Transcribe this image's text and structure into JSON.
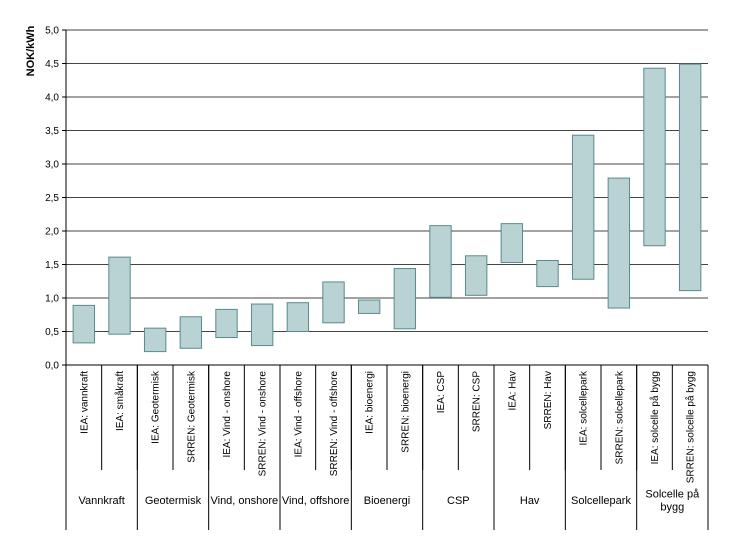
{
  "chart_data": {
    "type": "bar",
    "title": "",
    "xlabel": "",
    "ylabel": "NOK/kWh",
    "ylim": [
      0,
      5
    ],
    "ytick_step": 0.5,
    "ytick_labels": [
      "0,0",
      "0,5",
      "1,0",
      "1,5",
      "2,0",
      "2,5",
      "3,0",
      "3,5",
      "4,0",
      "4,5",
      "5,0"
    ],
    "grid": true,
    "legend": "none",
    "bar_color": "#b9d3d4",
    "bar_edge_color": "#5a8a8c",
    "categories": [
      "IEA: vannkraft",
      "IEA: småkraft",
      "IEA: Geotermisk",
      "SRREN: Geotermisk",
      "IEA: Vind - onshore",
      "SRREN: Vind - onshore",
      "IEA: Vind - offshore",
      "SRREN: Vind - offshore",
      "IEA: bioenergi",
      "SRREN: bioenergi",
      "IEA: CSP",
      "SRREN: CSP",
      "IEA: Hav",
      "SRREN: Hav",
      "IEA: solcellepark",
      "SRREN: solcellepark",
      "IEA: solcelle på bygg",
      "SRREN: solcelle på bygg"
    ],
    "series": [
      {
        "low": [
          0.33,
          0.46,
          0.2,
          0.25,
          0.41,
          0.29,
          0.5,
          0.63,
          0.77,
          0.54,
          1.01,
          1.04,
          1.53,
          1.17,
          1.28,
          0.85,
          1.78,
          1.11
        ],
        "high": [
          0.89,
          1.61,
          0.55,
          0.72,
          0.83,
          0.91,
          0.93,
          1.24,
          0.97,
          1.44,
          2.08,
          1.63,
          2.11,
          1.56,
          3.43,
          2.79,
          4.43,
          4.49
        ]
      }
    ],
    "groups": [
      [
        "Vannkraft"
      ],
      [
        "Geotermisk"
      ],
      [
        "Vind, onshore"
      ],
      [
        "Vind, offshore"
      ],
      [
        "Bioenergi"
      ],
      [
        "CSP"
      ],
      [
        "Hav"
      ],
      [
        "Solcellepark"
      ],
      [
        "Solcelle på",
        "bygg"
      ]
    ]
  }
}
